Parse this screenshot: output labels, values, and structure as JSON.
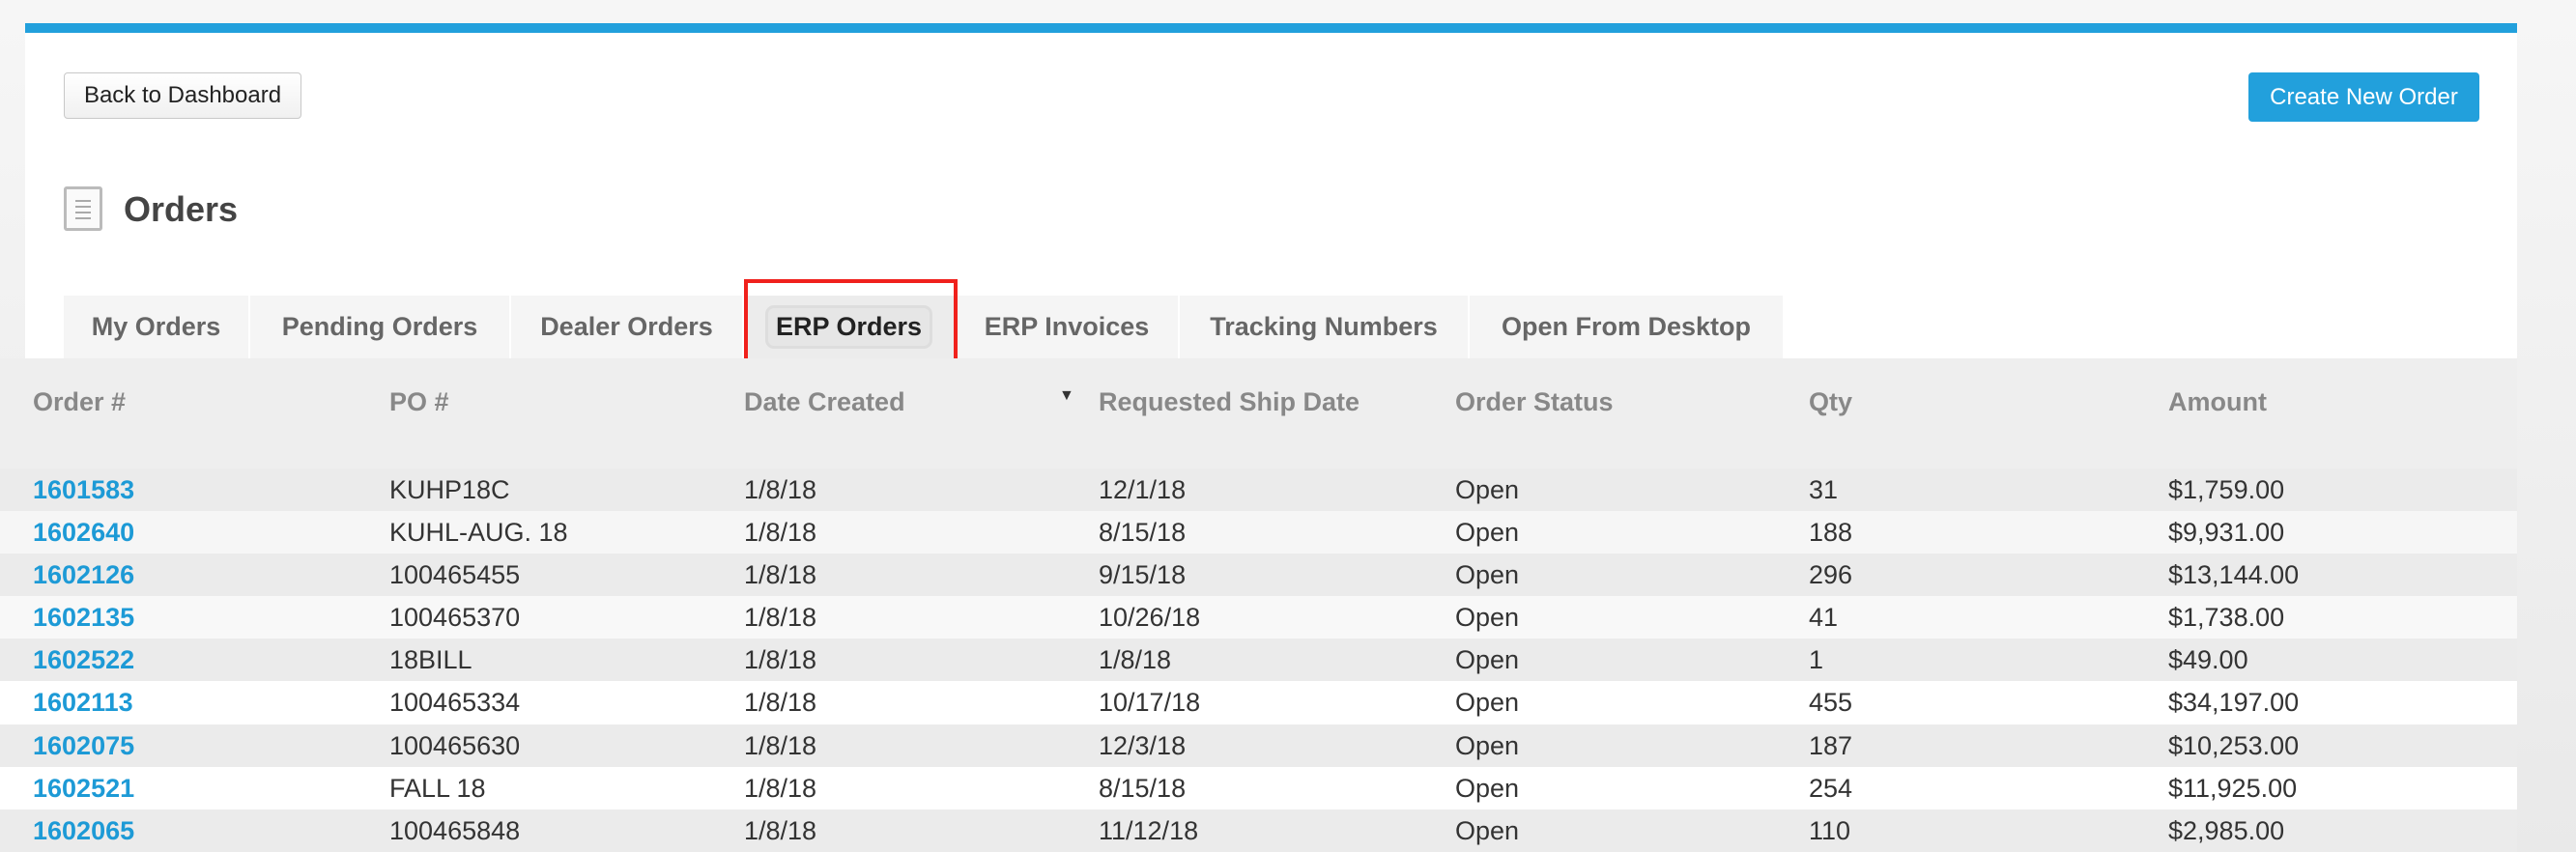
{
  "header": {
    "back_label": "Back to Dashboard",
    "create_label": "Create New Order",
    "title": "Orders",
    "accent_color": "#22a0dc"
  },
  "tabs": [
    {
      "label": "My Orders",
      "active": false
    },
    {
      "label": "Pending Orders",
      "active": false
    },
    {
      "label": "Dealer Orders",
      "active": false
    },
    {
      "label": "ERP Orders",
      "active": true
    },
    {
      "label": "ERP Invoices",
      "active": false
    },
    {
      "label": "Tracking Numbers",
      "active": false
    },
    {
      "label": "Open From Desktop",
      "active": false
    }
  ],
  "table": {
    "columns": [
      "Order #",
      "PO #",
      "Date Created",
      "Requested Ship Date",
      "Order Status",
      "Qty",
      "Amount"
    ],
    "sort_column": "Date Created",
    "sort_direction": "descending",
    "rows": [
      [
        "1601583",
        "KUHP18C",
        "1/8/18",
        "12/1/18",
        "Open",
        "31",
        "$1,759.00"
      ],
      [
        "1602640",
        "KUHL-AUG. 18",
        "1/8/18",
        "8/15/18",
        "Open",
        "188",
        "$9,931.00"
      ],
      [
        "1602126",
        "100465455",
        "1/8/18",
        "9/15/18",
        "Open",
        "296",
        "$13,144.00"
      ],
      [
        "1602135",
        "100465370",
        "1/8/18",
        "10/26/18",
        "Open",
        "41",
        "$1,738.00"
      ],
      [
        "1602522",
        "18BILL",
        "1/8/18",
        "1/8/18",
        "Open",
        "1",
        "$49.00"
      ],
      [
        "1602113",
        "100465334",
        "1/8/18",
        "10/17/18",
        "Open",
        "455",
        "$34,197.00"
      ],
      [
        "1602075",
        "100465630",
        "1/8/18",
        "12/3/18",
        "Open",
        "187",
        "$10,253.00"
      ],
      [
        "1602521",
        "FALL 18",
        "1/8/18",
        "8/15/18",
        "Open",
        "254",
        "$11,925.00"
      ],
      [
        "1602065",
        "100465848",
        "1/8/18",
        "11/12/18",
        "Open",
        "110",
        "$2,985.00"
      ]
    ]
  }
}
